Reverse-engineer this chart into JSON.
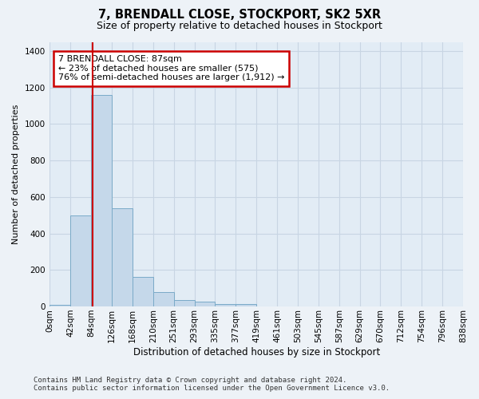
{
  "title": "7, BRENDALL CLOSE, STOCKPORT, SK2 5XR",
  "subtitle": "Size of property relative to detached houses in Stockport",
  "xlabel": "Distribution of detached houses by size in Stockport",
  "ylabel": "Number of detached properties",
  "bar_labels": [
    "0sqm",
    "42sqm",
    "84sqm",
    "126sqm",
    "168sqm",
    "210sqm",
    "251sqm",
    "293sqm",
    "335sqm",
    "377sqm",
    "419sqm",
    "461sqm",
    "503sqm",
    "545sqm",
    "587sqm",
    "629sqm",
    "670sqm",
    "712sqm",
    "754sqm",
    "796sqm",
    "838sqm"
  ],
  "bar_values": [
    10,
    500,
    1160,
    540,
    160,
    80,
    35,
    25,
    15,
    15,
    0,
    0,
    0,
    0,
    0,
    0,
    0,
    0,
    0,
    0
  ],
  "bar_color": "#c5d8ea",
  "bar_edge_color": "#7aaac8",
  "annotation_text": "7 BRENDALL CLOSE: 87sqm\n← 23% of detached houses are smaller (575)\n76% of semi-detached houses are larger (1,912) →",
  "ylim_max": 1450,
  "yticks": [
    0,
    200,
    400,
    600,
    800,
    1000,
    1200,
    1400
  ],
  "footer_line1": "Contains HM Land Registry data © Crown copyright and database right 2024.",
  "footer_line2": "Contains public sector information licensed under the Open Government Licence v3.0.",
  "bg_color": "#edf2f7",
  "plot_bg_color": "#e2ecf5",
  "grid_color": "#c8d5e3",
  "red_line_color": "#cc0000",
  "annot_facecolor": "#ffffff",
  "annot_edgecolor": "#cc0000",
  "title_fontsize": 10.5,
  "subtitle_fontsize": 9,
  "ylabel_fontsize": 8,
  "xlabel_fontsize": 8.5,
  "tick_fontsize": 7.5,
  "annot_fontsize": 8,
  "footer_fontsize": 6.5
}
